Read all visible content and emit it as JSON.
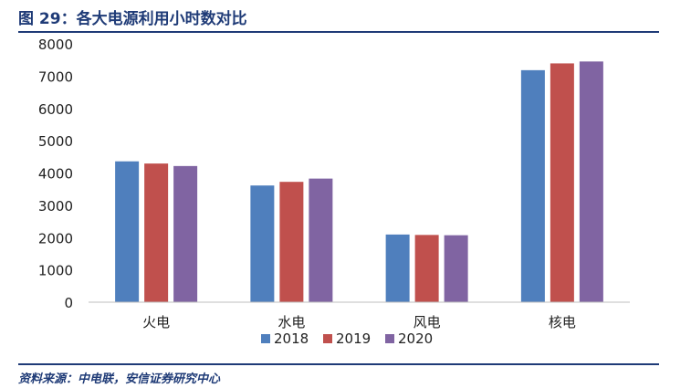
{
  "figure": {
    "title": "图 29：各大电源利用小时数对比",
    "source": "资料来源：中电联，安信证券研究中心"
  },
  "chart_data": {
    "type": "bar",
    "categories": [
      "火电",
      "水电",
      "风电",
      "核电"
    ],
    "series": [
      {
        "name": "2018",
        "color": "#4f7fbd",
        "values": [
          4361,
          3613,
          2095,
          7184
        ]
      },
      {
        "name": "2019",
        "color": "#c0504d",
        "values": [
          4293,
          3726,
          2082,
          7394
        ]
      },
      {
        "name": "2020",
        "color": "#8064a2",
        "values": [
          4216,
          3827,
          2073,
          7453
        ]
      }
    ],
    "ylim": [
      0,
      8000
    ],
    "yticks": [
      0,
      1000,
      2000,
      3000,
      4000,
      5000,
      6000,
      7000,
      8000
    ],
    "grid": false,
    "legend_position": "bottom-center"
  }
}
